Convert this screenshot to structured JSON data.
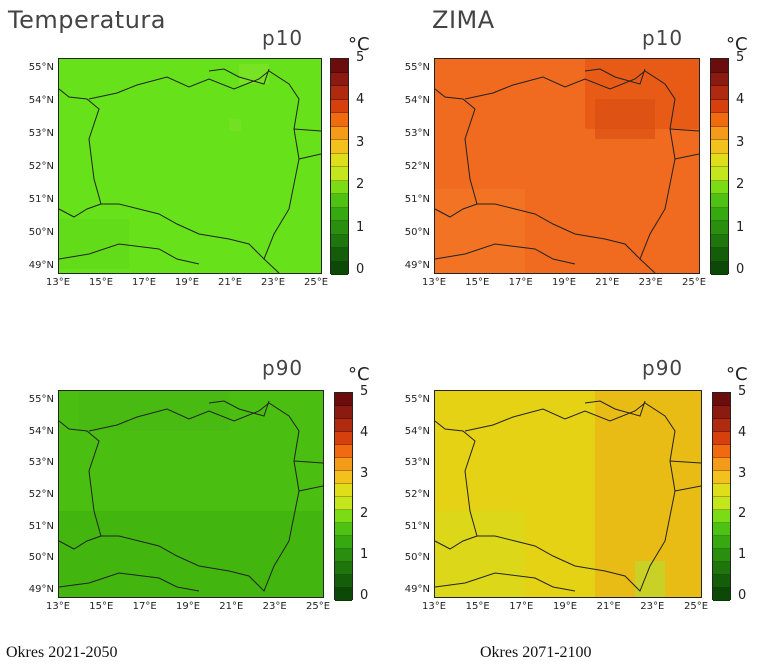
{
  "figure": {
    "title_left": "Temperatura",
    "title_right": "ZIMA",
    "unit": "°C",
    "period_left": "Okres 2021-2050",
    "period_right": "Okres 2071-2100"
  },
  "axes": {
    "lat_labels": [
      "55°N",
      "54°N",
      "53°N",
      "52°N",
      "51°N",
      "50°N",
      "49°N"
    ],
    "lon_labels": [
      "13°E",
      "15°E",
      "17°E",
      "19°E",
      "21°E",
      "23°E",
      "25°E"
    ]
  },
  "colorbar": {
    "ticks": [
      "5",
      "4",
      "3",
      "2",
      "1",
      "0"
    ],
    "colors": [
      "#6b0d0d",
      "#8b1a10",
      "#b02a10",
      "#d6400c",
      "#f06a10",
      "#f59b1a",
      "#f3c11c",
      "#dede1a",
      "#c4e61c",
      "#7bdc16",
      "#4ec212",
      "#36a810",
      "#2a8e0e",
      "#1e760c",
      "#145e0a",
      "#0c4806"
    ]
  },
  "panels": [
    {
      "id": "p10-2021-2050",
      "percentile": "p10",
      "period": "2021-2050",
      "fill": "#66e11a",
      "fill_alt": "#72e322",
      "value_approx": "≈2 °C"
    },
    {
      "id": "p10-2071-2100",
      "percentile": "p10",
      "period": "2071-2100",
      "fill": "#f06a1f",
      "fill_alt": "#e85b16",
      "value_approx": "≈4.3 °C"
    },
    {
      "id": "p90-2021-2050",
      "percentile": "p90",
      "period": "2021-2050",
      "fill": "#4bbe12",
      "fill_alt": "#3fb10e",
      "value_approx": "≈1.8 °C"
    },
    {
      "id": "p90-2071-2100",
      "percentile": "p90",
      "period": "2071-2100",
      "fill": "#e6d214",
      "fill_alt": "#e8b416",
      "value_approx": "≈3.2 °C"
    }
  ]
}
